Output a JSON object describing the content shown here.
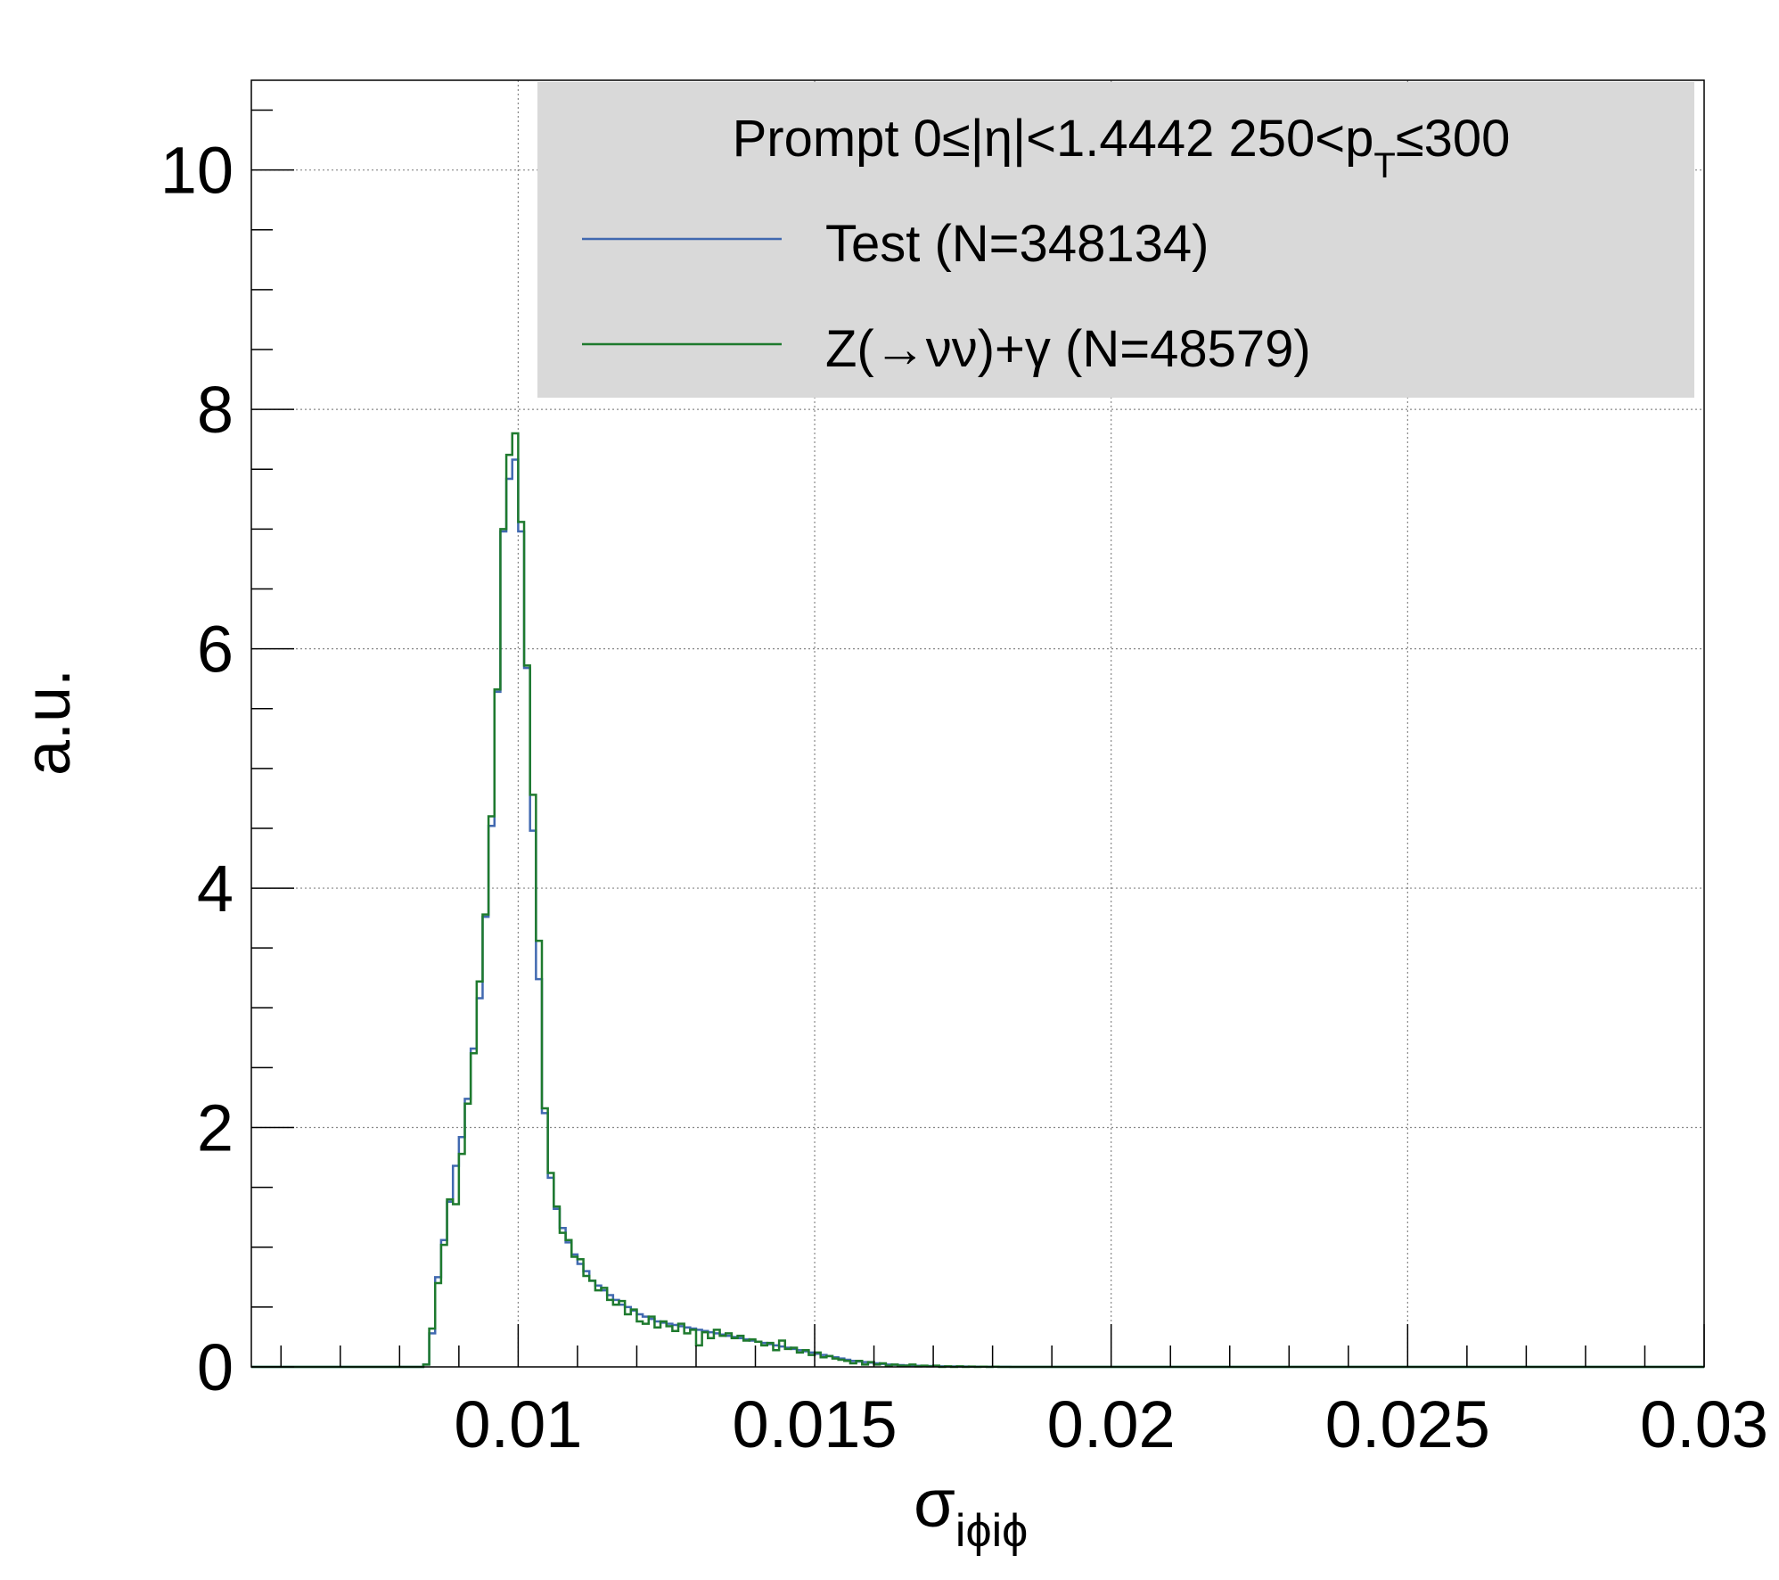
{
  "chart_data": {
    "type": "line",
    "xlabel": {
      "symbol": "σ",
      "subscript": "iϕiϕ"
    },
    "ylabel": "a.u.",
    "xlim": [
      0.0055,
      0.03
    ],
    "ylim": [
      0,
      10.75
    ],
    "x_ticks": [
      {
        "value": 0.01,
        "label": "0.01"
      },
      {
        "value": 0.015,
        "label": "0.015"
      },
      {
        "value": 0.02,
        "label": "0.02"
      },
      {
        "value": 0.025,
        "label": "0.025"
      },
      {
        "value": 0.03,
        "label": "0.03"
      }
    ],
    "y_ticks": [
      {
        "value": 0,
        "label": "0"
      },
      {
        "value": 2,
        "label": "2"
      },
      {
        "value": 4,
        "label": "4"
      },
      {
        "value": 6,
        "label": "6"
      },
      {
        "value": 8,
        "label": "8"
      },
      {
        "value": 10,
        "label": "10"
      }
    ],
    "grid": true,
    "legend": {
      "position": "top-right",
      "header": {
        "prefix": "Prompt  0≤|η|<1.4442  250<p",
        "sub": "T",
        "suffix": "≤300"
      }
    },
    "bin_edges_start": 0.0055,
    "bin_width": 0.0001,
    "series": [
      {
        "name": "Test (N=348134)",
        "color": "#4169b0",
        "values": [
          0,
          0,
          0,
          0,
          0,
          0,
          0,
          0,
          0,
          0,
          0,
          0,
          0,
          0,
          0,
          0,
          0,
          0,
          0,
          0,
          0,
          0,
          0,
          0,
          0,
          0,
          0,
          0,
          0,
          0.02,
          0.28,
          0.75,
          1.06,
          1.38,
          1.68,
          1.92,
          2.24,
          2.66,
          3.08,
          3.76,
          4.52,
          5.64,
          6.98,
          7.42,
          7.58,
          6.98,
          5.84,
          4.48,
          3.24,
          2.12,
          1.58,
          1.32,
          1.16,
          1.04,
          0.94,
          0.86,
          0.8,
          0.72,
          0.68,
          0.64,
          0.6,
          0.56,
          0.52,
          0.5,
          0.47,
          0.44,
          0.42,
          0.4,
          0.38,
          0.37,
          0.36,
          0.35,
          0.34,
          0.33,
          0.32,
          0.31,
          0.3,
          0.29,
          0.28,
          0.27,
          0.26,
          0.25,
          0.24,
          0.23,
          0.22,
          0.21,
          0.2,
          0.19,
          0.18,
          0.17,
          0.16,
          0.15,
          0.14,
          0.13,
          0.12,
          0.11,
          0.1,
          0.09,
          0.08,
          0.07,
          0.06,
          0.05,
          0.045,
          0.04,
          0.035,
          0.03,
          0.025,
          0.02,
          0.018,
          0.015,
          0.012,
          0.01,
          0.009,
          0.008,
          0.007,
          0.006,
          0.005,
          0.004,
          0.004,
          0.003,
          0.003,
          0.002,
          0.002,
          0.002,
          0.001,
          0.001,
          0.001,
          0.001,
          0,
          0
        ]
      },
      {
        "name": "Z(→νν)+γ (N=48579)",
        "color": "#1e7a2e",
        "values": [
          0,
          0,
          0,
          0,
          0,
          0,
          0,
          0,
          0,
          0,
          0,
          0,
          0,
          0,
          0,
          0,
          0,
          0,
          0,
          0,
          0,
          0,
          0,
          0,
          0,
          0,
          0,
          0,
          0,
          0.02,
          0.32,
          0.7,
          1.02,
          1.4,
          1.36,
          1.78,
          2.2,
          2.62,
          3.22,
          3.78,
          4.6,
          5.66,
          7.0,
          7.62,
          7.8,
          7.06,
          5.86,
          4.78,
          3.56,
          2.16,
          1.62,
          1.34,
          1.12,
          1.06,
          0.92,
          0.9,
          0.76,
          0.72,
          0.64,
          0.66,
          0.56,
          0.52,
          0.55,
          0.44,
          0.48,
          0.38,
          0.36,
          0.42,
          0.33,
          0.38,
          0.34,
          0.3,
          0.36,
          0.28,
          0.31,
          0.18,
          0.29,
          0.24,
          0.31,
          0.26,
          0.28,
          0.24,
          0.26,
          0.22,
          0.23,
          0.21,
          0.18,
          0.2,
          0.14,
          0.22,
          0.15,
          0.16,
          0.12,
          0.14,
          0.1,
          0.12,
          0.08,
          0.09,
          0.07,
          0.06,
          0.05,
          0.03,
          0.05,
          0.02,
          0.04,
          0.02,
          0.03,
          0.01,
          0.02,
          0.01,
          0.01,
          0.02,
          0.005,
          0.01,
          0.005,
          0.01,
          0,
          0.005,
          0,
          0.005,
          0,
          0.003,
          0,
          0.002,
          0,
          0.002,
          0,
          0,
          0,
          0
        ]
      }
    ]
  }
}
